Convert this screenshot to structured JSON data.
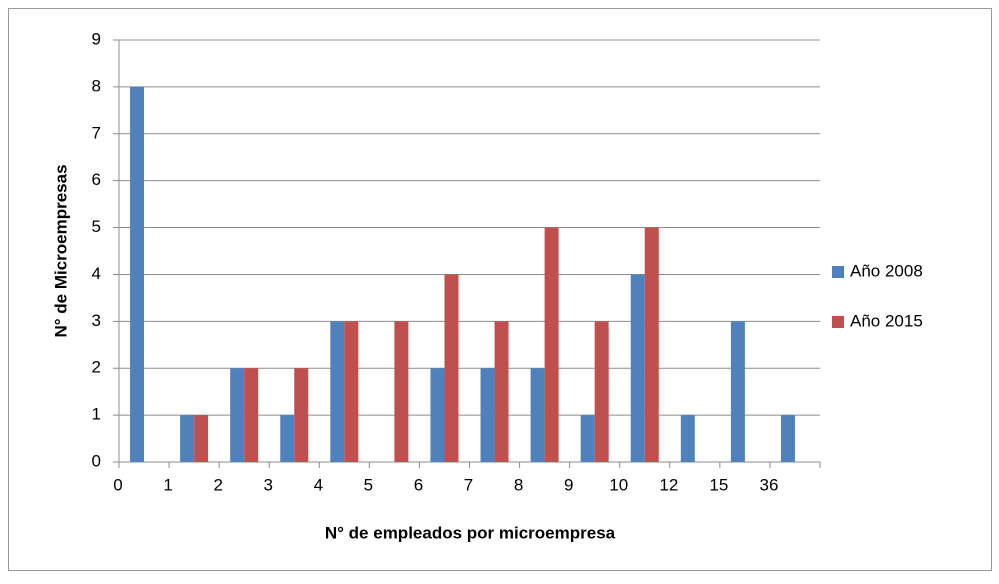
{
  "chart_data": {
    "type": "bar",
    "x_label": "N° de empleados por microempresa",
    "y_label": "N° de Microempresas",
    "categories": [
      "0",
      "1",
      "2",
      "3",
      "4",
      "5",
      "6",
      "7",
      "8",
      "9",
      "10",
      "12",
      "15",
      "36"
    ],
    "series": [
      {
        "name": "Año 2008",
        "color": "#4f81bd",
        "values": [
          8,
          1,
          2,
          1,
          3,
          0,
          2,
          2,
          2,
          1,
          4,
          1,
          3,
          1
        ]
      },
      {
        "name": "Año 2015",
        "color": "#c0504d",
        "values": [
          0,
          1,
          2,
          2,
          3,
          3,
          4,
          3,
          5,
          3,
          5,
          0,
          0,
          0
        ]
      }
    ],
    "ylim": [
      0,
      9
    ],
    "yticks": [
      0,
      1,
      2,
      3,
      4,
      5,
      6,
      7,
      8,
      9
    ],
    "grid": true,
    "legend": "right"
  }
}
